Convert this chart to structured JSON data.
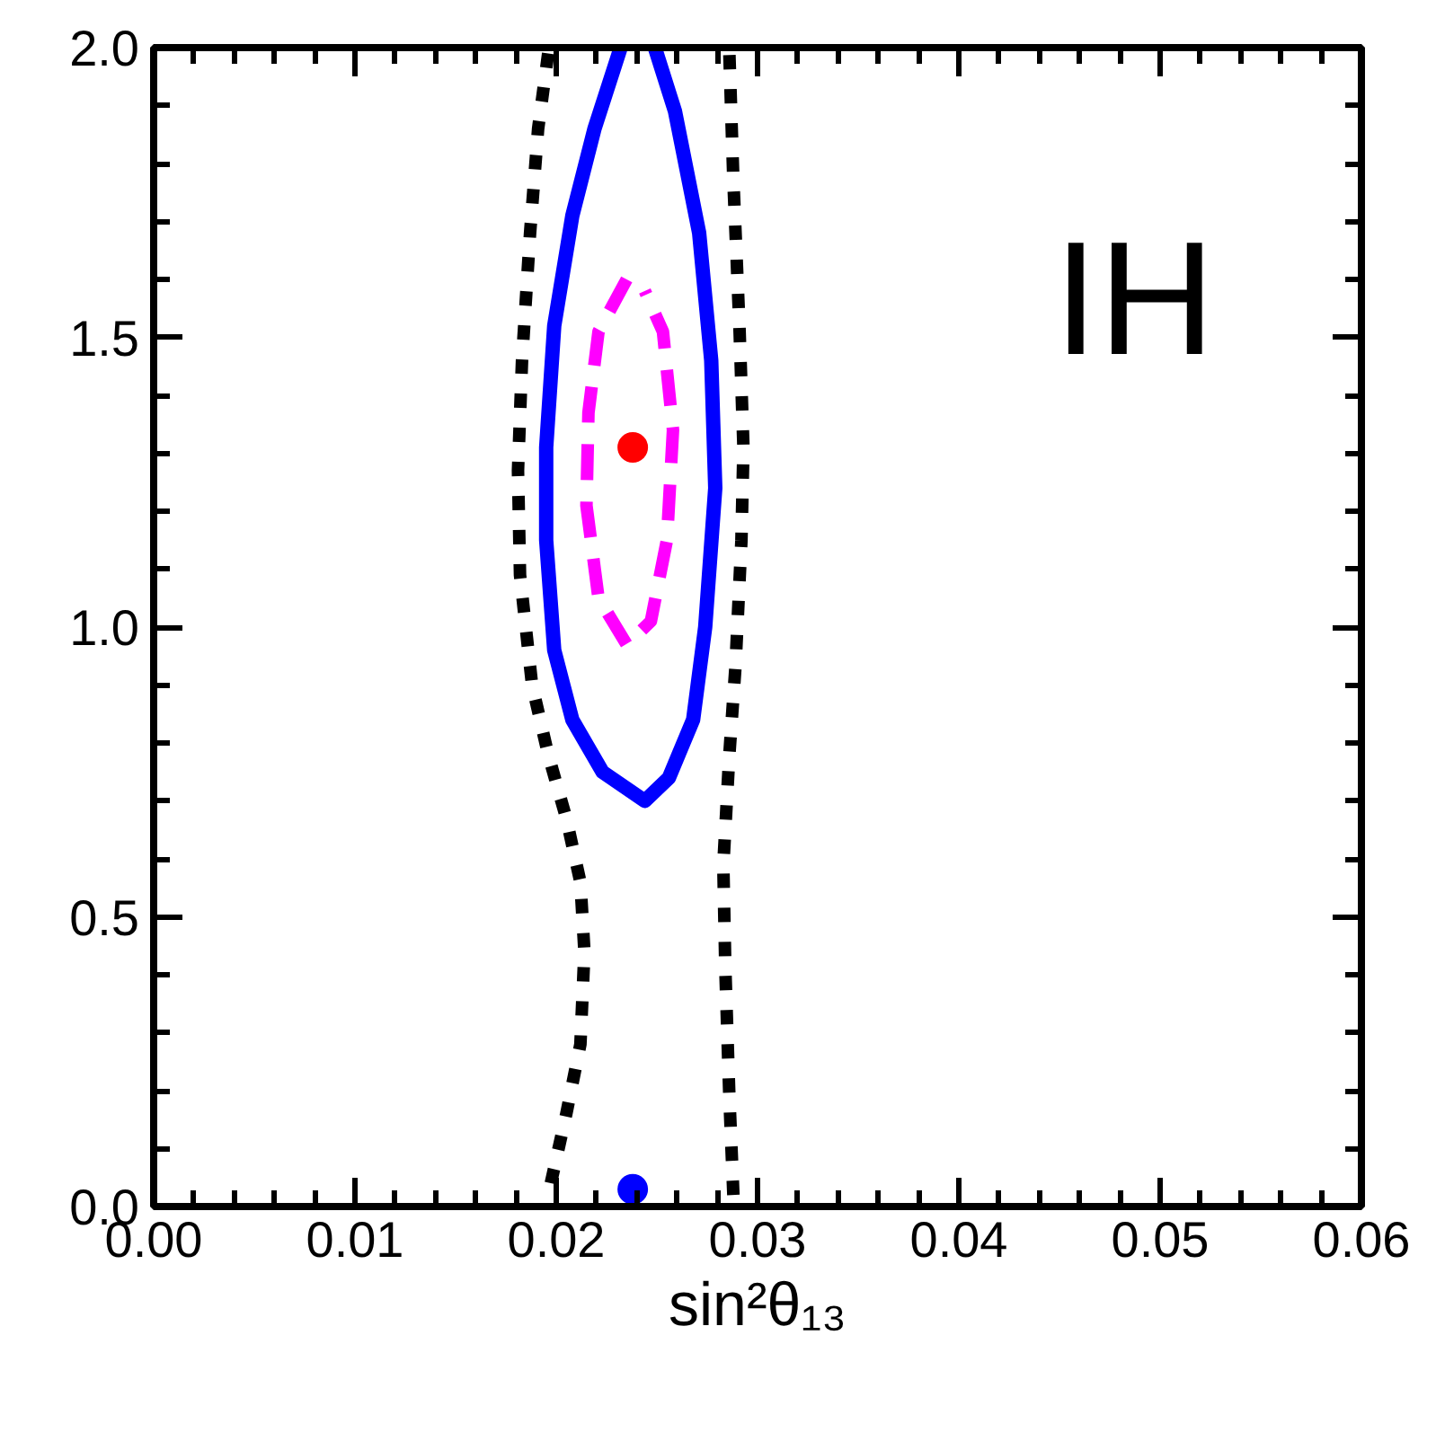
{
  "chart_data": {
    "type": "line",
    "xlabel": "sin²θ₁₃",
    "annotations": [
      "IH"
    ],
    "xlim": [
      0.0,
      0.06
    ],
    "ylim": [
      0.0,
      2.0
    ],
    "xticks": [
      {
        "value": 0.0,
        "label": "0.00"
      },
      {
        "value": 0.01,
        "label": "0.01"
      },
      {
        "value": 0.02,
        "label": "0.02"
      },
      {
        "value": 0.03,
        "label": "0.03"
      },
      {
        "value": 0.04,
        "label": "0.04"
      },
      {
        "value": 0.05,
        "label": "0.05"
      },
      {
        "value": 0.06,
        "label": "0.06"
      }
    ],
    "yticks": [
      {
        "value": 0.0,
        "label": "0.0"
      },
      {
        "value": 0.5,
        "label": "0.5"
      },
      {
        "value": 1.0,
        "label": "1.0"
      },
      {
        "value": 1.5,
        "label": "1.5"
      },
      {
        "value": 2.0,
        "label": "2.0"
      }
    ],
    "grid": false,
    "series": [
      {
        "color": "#000000",
        "line_style": "dotted",
        "x": [
          0.0196,
          0.0191,
          0.0187,
          0.0183,
          0.0181,
          0.0182,
          0.0188,
          0.0196,
          0.0205,
          0.0212,
          0.0214,
          0.0212,
          0.0205,
          0.0196
        ],
        "values": [
          1.99,
          1.86,
          1.68,
          1.46,
          1.27,
          1.09,
          0.9,
          0.78,
          0.67,
          0.56,
          0.44,
          0.28,
          0.16,
          0.02
        ]
      },
      {
        "color": "#000000",
        "line_style": "dotted",
        "x": [
          0.0288,
          0.0286,
          0.0284,
          0.0283,
          0.0286,
          0.0289,
          0.0292,
          0.0293,
          0.0291,
          0.0288,
          0.0286
        ],
        "values": [
          0.02,
          0.19,
          0.41,
          0.59,
          0.78,
          0.93,
          1.15,
          1.31,
          1.52,
          1.77,
          1.99
        ]
      },
      {
        "color": "#0000ff",
        "line_style": "solid",
        "x": [
          0.0232,
          0.0219,
          0.0208,
          0.0199,
          0.0195,
          0.0195,
          0.0199,
          0.0208,
          0.0223,
          0.0244,
          0.0256,
          0.0268,
          0.0274,
          0.0279,
          0.0277,
          0.0271,
          0.0259,
          0.0249
        ],
        "values": [
          2.0,
          1.86,
          1.71,
          1.52,
          1.31,
          1.15,
          0.96,
          0.84,
          0.75,
          0.7,
          0.74,
          0.84,
          1.0,
          1.24,
          1.46,
          1.68,
          1.89,
          2.0
        ]
      },
      {
        "type": "scatter",
        "color": "#0000ff",
        "marker": "circle",
        "x": [
          0.0238
        ],
        "values": [
          0.03
        ]
      },
      {
        "color": "#ff00ff",
        "line_style": "dashed",
        "x": [
          0.0235,
          0.0221,
          0.0216,
          0.0215,
          0.0221,
          0.0235,
          0.0247,
          0.0255,
          0.0258,
          0.0253,
          0.0244
        ],
        "values": [
          1.6,
          1.51,
          1.37,
          1.21,
          1.05,
          0.97,
          1.01,
          1.15,
          1.34,
          1.51,
          1.58
        ]
      },
      {
        "type": "scatter",
        "color": "#ff0000",
        "marker": "circle",
        "x": [
          0.0238
        ],
        "values": [
          1.31
        ]
      }
    ]
  }
}
